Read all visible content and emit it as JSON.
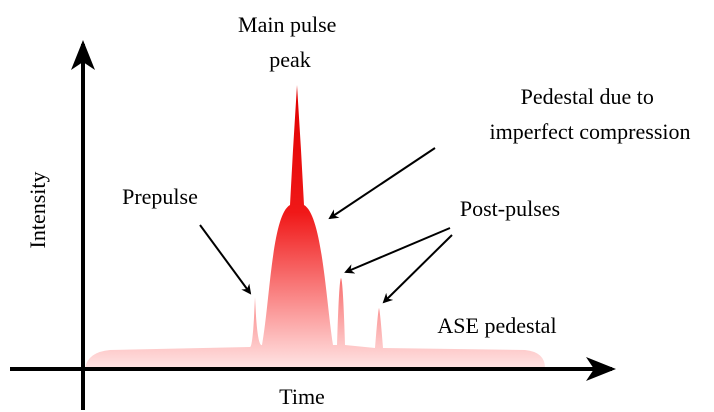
{
  "axes": {
    "x_label": "Time",
    "y_label": "Intensity"
  },
  "labels": {
    "main_peak": [
      "Main pulse",
      "peak"
    ],
    "pedestal_compression": [
      "Pedestal due to",
      "imperfect compression"
    ],
    "prepulse": "Prepulse",
    "post_pulses": "Post-pulses",
    "ase_pedestal": "ASE pedestal"
  }
}
